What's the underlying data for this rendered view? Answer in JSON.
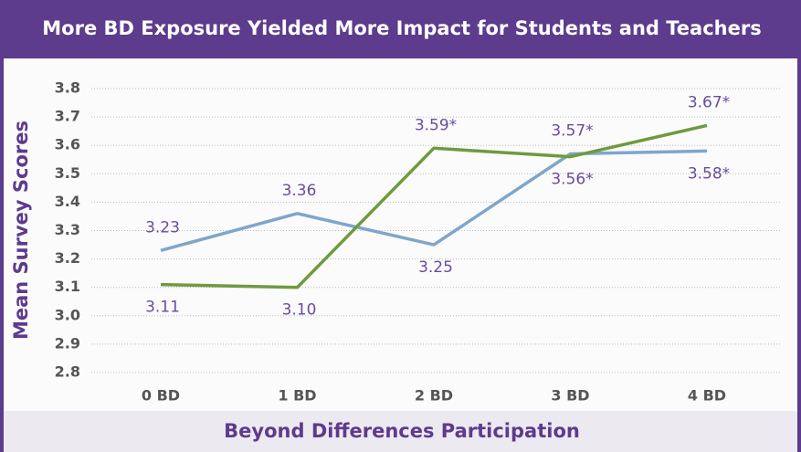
{
  "chart_data": {
    "type": "line",
    "title": "More BD Exposure Yielded More Impact for Students and Teachers",
    "xlabel": "Beyond Differences Participation",
    "ylabel": "Mean Survey Scores",
    "categories": [
      "0 BD",
      "1 BD",
      "2 BD",
      "3 BD",
      "4 BD"
    ],
    "series": [
      {
        "color": "#7ea6c9",
        "values": [
          3.23,
          3.36,
          3.25,
          3.57,
          3.58
        ],
        "value_labels": [
          "3.23",
          "3.36",
          "3.25",
          "3.57*",
          "3.58*"
        ]
      },
      {
        "color": "#6f9a3e",
        "values": [
          3.11,
          3.1,
          3.59,
          3.56,
          3.67
        ],
        "value_labels": [
          "3.11",
          "3.10",
          "3.59*",
          "3.56*",
          "3.67*"
        ]
      }
    ],
    "ylim": [
      2.8,
      3.8
    ],
    "yticks": [
      2.8,
      2.9,
      {
        "value": 3,
        "label": "3.0"
      },
      3.1,
      3.2,
      3.3,
      3.4,
      3.5,
      3.6,
      3.7,
      3.8
    ],
    "grid": true
  }
}
